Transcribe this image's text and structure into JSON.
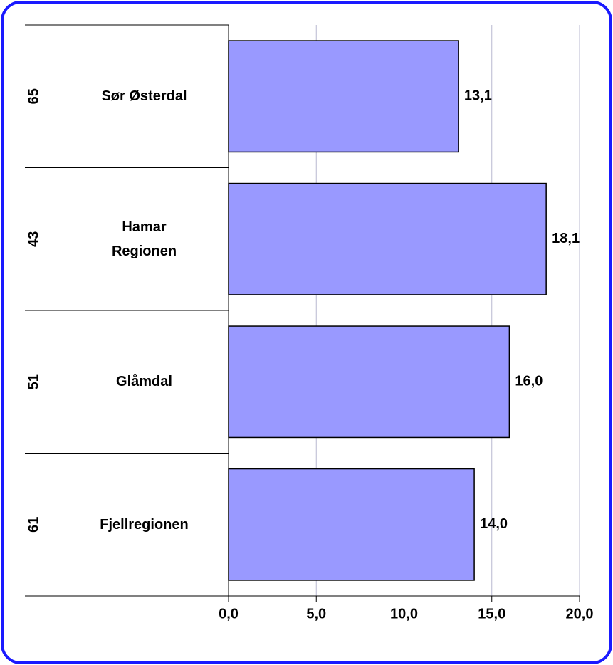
{
  "chart_data": {
    "type": "barh",
    "groups": [
      "65",
      "43",
      "51",
      "61"
    ],
    "categories": [
      "Sør Østerdal",
      "Hamar\nRegionen",
      "Glåmdal",
      "Fjellregionen"
    ],
    "values": [
      13.1,
      18.1,
      16.0,
      14.0
    ],
    "value_labels": [
      "13,1",
      "18,1",
      "16,0",
      "14,0"
    ],
    "color": "#9999ff",
    "xlim": [
      0,
      20
    ],
    "xticks": [
      {
        "value": 0,
        "label": "0,0"
      },
      {
        "value": 5,
        "label": "5,0"
      },
      {
        "value": 10,
        "label": "10,0"
      },
      {
        "value": 15,
        "label": "15,0"
      },
      {
        "value": 20,
        "label": "20,0"
      }
    ],
    "grid": true
  }
}
